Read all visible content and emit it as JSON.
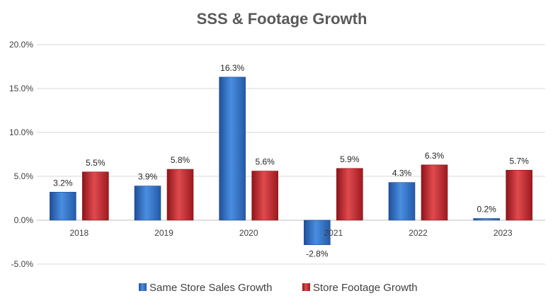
{
  "chart_data": {
    "type": "bar",
    "title": "SSS & Footage Growth",
    "categories": [
      "2018",
      "2019",
      "2020",
      "2021",
      "2022",
      "2023"
    ],
    "series": [
      {
        "name": "Same Store Sales Growth",
        "values": [
          3.2,
          3.9,
          16.3,
          -2.8,
          4.3,
          0.2
        ],
        "labels": [
          "3.2%",
          "3.9%",
          "16.3%",
          "-2.8%",
          "4.3%",
          "0.2%"
        ],
        "color": "#2e6fc2"
      },
      {
        "name": "Store Footage Growth",
        "values": [
          5.5,
          5.8,
          5.6,
          5.9,
          6.3,
          5.7
        ],
        "labels": [
          "5.5%",
          "5.8%",
          "5.6%",
          "5.9%",
          "6.3%",
          "5.7%"
        ],
        "color": "#c0272d"
      }
    ],
    "ylim": [
      -5,
      20
    ],
    "yticks": [
      -5,
      0,
      5,
      10,
      15,
      20
    ],
    "ytick_labels": [
      "-5.0%",
      "0.0%",
      "5.0%",
      "10.0%",
      "15.0%",
      "20.0%"
    ],
    "xlabel": "",
    "ylabel": "",
    "grid": true,
    "legend": "bottom"
  }
}
